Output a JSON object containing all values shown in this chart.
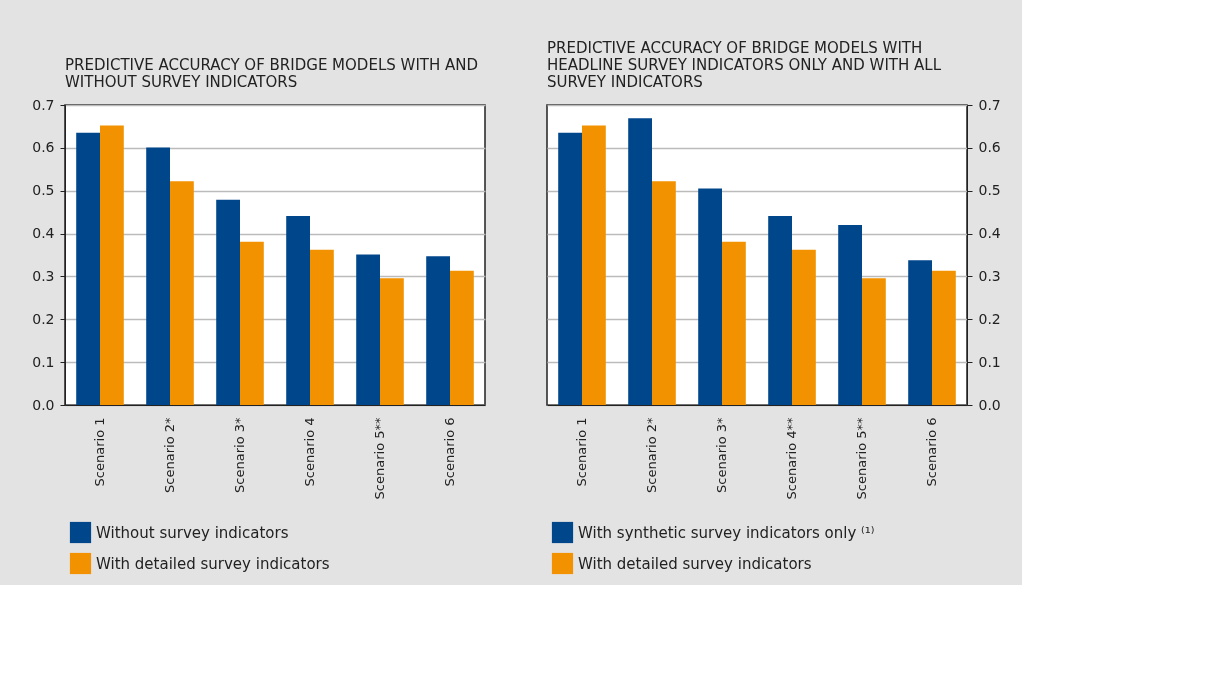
{
  "chart_data": [
    {
      "type": "bar",
      "title": "PREDICTIVE ACCURACY OF BRIDGE MODELS WITH AND WITHOUT SURVEY INDICATORS",
      "categories": [
        "Scenario 1",
        "Scenario 2*",
        "Scenario 3*",
        "Scenario 4",
        "Scenario 5**",
        "Scenario 6"
      ],
      "series": [
        {
          "name": "Without survey indicators",
          "color": "#00468b",
          "values": [
            0.635,
            0.601,
            0.479,
            0.441,
            0.351,
            0.347
          ]
        },
        {
          "name": "With detailed survey indicators",
          "color": "#f39200",
          "values": [
            0.652,
            0.522,
            0.381,
            0.362,
            0.296,
            0.313
          ]
        }
      ],
      "ylim": [
        0,
        0.7
      ],
      "yticks": [
        {
          "value": 0,
          "label": "0.0"
        },
        0.1,
        0.2,
        0.3,
        0.4,
        0.5,
        0.6,
        0.7
      ],
      "grid": "y",
      "legend": "bottom"
    },
    {
      "type": "bar",
      "title": "PREDICTIVE ACCURACY OF BRIDGE MODELS WITH HEADLINE SURVEY INDICATORS ONLY AND WITH ALL SURVEY INDICATORS",
      "categories": [
        "Scenario 1",
        "Scenario 2*",
        "Scenario 3*",
        "Scenario 4**",
        "Scenario 5**",
        "Scenario 6"
      ],
      "series": [
        {
          "name": "With synthetic survey indicators only ⁽¹⁾",
          "color": "#00468b",
          "axis": "y2",
          "values": [
            0.635,
            0.669,
            0.505,
            0.441,
            0.42,
            0.338
          ]
        },
        {
          "name": "With detailed survey indicators",
          "color": "#f39200",
          "axis": "y2",
          "values": [
            0.652,
            0.522,
            0.381,
            0.362,
            0.296,
            0.313
          ]
        }
      ],
      "y2lim": [
        0,
        0.7
      ],
      "y2ticks": [
        {
          "value": 0,
          "label": "0.0"
        },
        0.1,
        0.2,
        0.3,
        0.4,
        0.5,
        0.6,
        0.7
      ],
      "grid": "y",
      "legend": "bottom"
    }
  ]
}
